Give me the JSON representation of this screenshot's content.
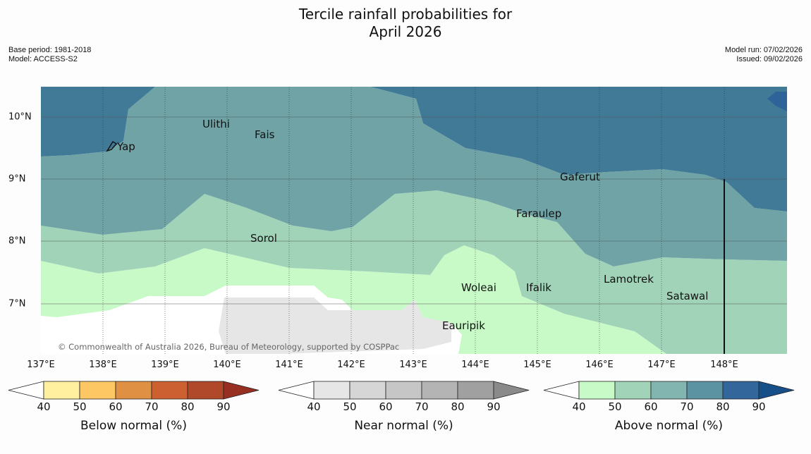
{
  "title_line1": "Tercile rainfall probabilities for",
  "title_line2": "April 2026",
  "meta_left": {
    "base_period": "Base period: 1981-2018",
    "model": "Model: ACCESS-S2"
  },
  "meta_right": {
    "model_run": "Model run: 07/02/2026",
    "issued": "Issued: 09/02/2026"
  },
  "longitude_labels": [
    "137°E",
    "138°E",
    "139°E",
    "140°E",
    "141°E",
    "142°E",
    "143°E",
    "144°E",
    "145°E",
    "146°E",
    "147°E",
    "148°E"
  ],
  "latitude_labels": [
    "10°N",
    "9°N",
    "8°N",
    "7°N"
  ],
  "places": [
    "Yap",
    "Ulithi",
    "Fais",
    "Gaferut",
    "Faraulep",
    "Sorol",
    "Lamotrek",
    "Woleai",
    "Ifalik",
    "Satawal",
    "Eauripik"
  ],
  "copyright": "© Commonwealth of Australia 2026, Bureau of Meteorology, supported by COSPPac",
  "colorbars": [
    {
      "title": "Below normal (%)",
      "ticks": [
        "40",
        "50",
        "60",
        "70",
        "80",
        "90"
      ],
      "colors": [
        "#fff0a0",
        "#fdc863",
        "#e09043",
        "#cd6030",
        "#b0482a",
        "#973023"
      ]
    },
    {
      "title": "Near normal (%)",
      "ticks": [
        "40",
        "50",
        "60",
        "70",
        "80",
        "90"
      ],
      "colors": [
        "#e6e6e6",
        "#d6d6d6",
        "#c6c6c6",
        "#b4b4b4",
        "#a0a0a0",
        "#8a8a8a"
      ]
    },
    {
      "title": "Above normal (%)",
      "ticks": [
        "40",
        "50",
        "60",
        "70",
        "80",
        "90"
      ],
      "colors": [
        "#c8fac8",
        "#a0d3b8",
        "#82b5b0",
        "#5c93a3",
        "#33669a",
        "#174f88"
      ]
    }
  ],
  "map_colors": {
    "above_40": "#c8fac8",
    "above_50": "#a0d3b8",
    "above_60": "#6fa3a6",
    "above_70": "#417a96",
    "above_80": "#2d6398",
    "near_40": "#e6e6e6",
    "none": "#ffffff"
  }
}
